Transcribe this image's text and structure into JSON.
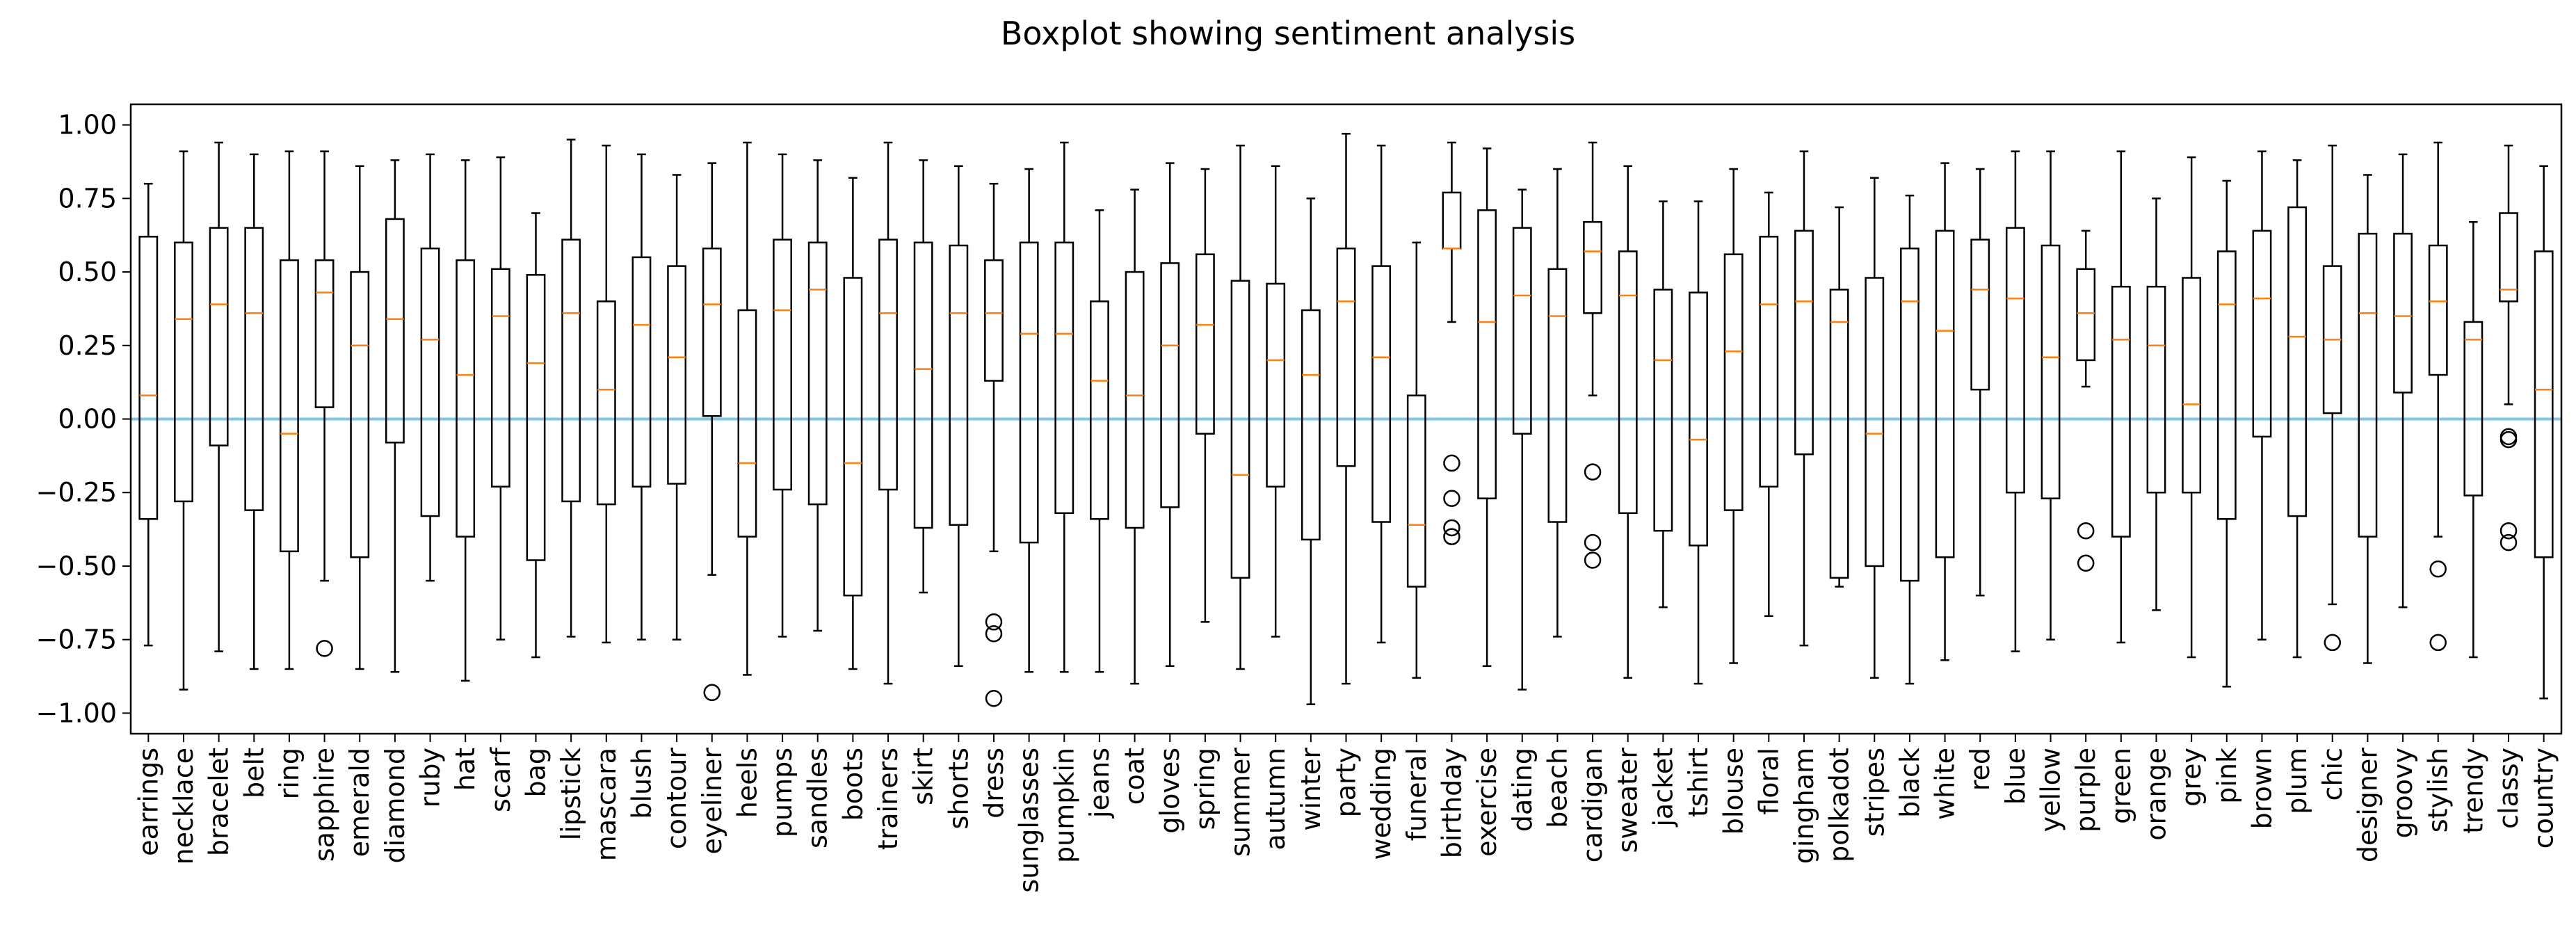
{
  "chart_data": {
    "type": "boxplot",
    "title": "Boxplot showing sentiment analysis",
    "xlabel": "",
    "ylabel": "",
    "ylim": [
      -1.07,
      1.07
    ],
    "yticks": [
      -1.0,
      -0.75,
      -0.5,
      -0.25,
      0.0,
      0.25,
      0.5,
      0.75,
      1.0
    ],
    "ytick_labels": [
      "−1.00",
      "−0.75",
      "−0.50",
      "−0.25",
      "0.00",
      "0.25",
      "0.50",
      "0.75",
      "1.00"
    ],
    "reference_line": {
      "y": 0.0,
      "color": "#7ec8e3"
    },
    "colors": {
      "box": "#000000",
      "median": "#ff7f0e",
      "flier": "#000000"
    },
    "grid": false,
    "categories": [
      "earrings",
      "necklace",
      "bracelet",
      "belt",
      "ring",
      "sapphire",
      "emerald",
      "diamond",
      "ruby",
      "hat",
      "scarf",
      "bag",
      "lipstick",
      "mascara",
      "blush",
      "contour",
      "eyeliner",
      "heels",
      "pumps",
      "sandles",
      "boots",
      "trainers",
      "skirt",
      "shorts",
      "dress",
      "sunglasses",
      "pumpkin",
      "jeans",
      "coat",
      "gloves",
      "spring",
      "summer",
      "autumn",
      "winter",
      "party",
      "wedding",
      "funeral",
      "birthday",
      "exercise",
      "dating",
      "beach",
      "cardigan",
      "sweater",
      "jacket",
      "tshirt",
      "blouse",
      "floral",
      "gingham",
      "polkadot",
      "stripes",
      "black",
      "white",
      "red",
      "blue",
      "yellow",
      "purple",
      "green",
      "orange",
      "grey",
      "pink",
      "brown",
      "plum",
      "chic",
      "designer",
      "groovy",
      "stylish",
      "trendy",
      "classy",
      "country"
    ],
    "boxes": [
      {
        "whislo": -0.77,
        "q1": -0.34,
        "med": 0.08,
        "q3": 0.62,
        "whishi": 0.8,
        "fliers": []
      },
      {
        "whislo": -0.92,
        "q1": -0.28,
        "med": 0.34,
        "q3": 0.6,
        "whishi": 0.91,
        "fliers": []
      },
      {
        "whislo": -0.79,
        "q1": -0.09,
        "med": 0.39,
        "q3": 0.65,
        "whishi": 0.94,
        "fliers": []
      },
      {
        "whislo": -0.85,
        "q1": -0.31,
        "med": 0.36,
        "q3": 0.65,
        "whishi": 0.9,
        "fliers": []
      },
      {
        "whislo": -0.85,
        "q1": -0.45,
        "med": -0.05,
        "q3": 0.54,
        "whishi": 0.91,
        "fliers": []
      },
      {
        "whislo": -0.55,
        "q1": 0.04,
        "med": 0.43,
        "q3": 0.54,
        "whishi": 0.91,
        "fliers": [
          -0.78
        ]
      },
      {
        "whislo": -0.85,
        "q1": -0.47,
        "med": 0.25,
        "q3": 0.5,
        "whishi": 0.86,
        "fliers": []
      },
      {
        "whislo": -0.86,
        "q1": -0.08,
        "med": 0.34,
        "q3": 0.68,
        "whishi": 0.88,
        "fliers": []
      },
      {
        "whislo": -0.55,
        "q1": -0.33,
        "med": 0.27,
        "q3": 0.58,
        "whishi": 0.9,
        "fliers": []
      },
      {
        "whislo": -0.89,
        "q1": -0.4,
        "med": 0.15,
        "q3": 0.54,
        "whishi": 0.88,
        "fliers": []
      },
      {
        "whislo": -0.75,
        "q1": -0.23,
        "med": 0.35,
        "q3": 0.51,
        "whishi": 0.89,
        "fliers": []
      },
      {
        "whislo": -0.81,
        "q1": -0.48,
        "med": 0.19,
        "q3": 0.49,
        "whishi": 0.7,
        "fliers": []
      },
      {
        "whislo": -0.74,
        "q1": -0.28,
        "med": 0.36,
        "q3": 0.61,
        "whishi": 0.95,
        "fliers": []
      },
      {
        "whislo": -0.76,
        "q1": -0.29,
        "med": 0.1,
        "q3": 0.4,
        "whishi": 0.93,
        "fliers": []
      },
      {
        "whislo": -0.75,
        "q1": -0.23,
        "med": 0.32,
        "q3": 0.55,
        "whishi": 0.9,
        "fliers": []
      },
      {
        "whislo": -0.75,
        "q1": -0.22,
        "med": 0.21,
        "q3": 0.52,
        "whishi": 0.83,
        "fliers": []
      },
      {
        "whislo": -0.53,
        "q1": 0.01,
        "med": 0.39,
        "q3": 0.58,
        "whishi": 0.87,
        "fliers": [
          -0.93
        ]
      },
      {
        "whislo": -0.87,
        "q1": -0.4,
        "med": -0.15,
        "q3": 0.37,
        "whishi": 0.94,
        "fliers": []
      },
      {
        "whislo": -0.74,
        "q1": -0.24,
        "med": 0.37,
        "q3": 0.61,
        "whishi": 0.9,
        "fliers": []
      },
      {
        "whislo": -0.72,
        "q1": -0.29,
        "med": 0.44,
        "q3": 0.6,
        "whishi": 0.88,
        "fliers": []
      },
      {
        "whislo": -0.85,
        "q1": -0.6,
        "med": -0.15,
        "q3": 0.48,
        "whishi": 0.82,
        "fliers": []
      },
      {
        "whislo": -0.9,
        "q1": -0.24,
        "med": 0.36,
        "q3": 0.61,
        "whishi": 0.94,
        "fliers": []
      },
      {
        "whislo": -0.59,
        "q1": -0.37,
        "med": 0.17,
        "q3": 0.6,
        "whishi": 0.88,
        "fliers": []
      },
      {
        "whislo": -0.84,
        "q1": -0.36,
        "med": 0.36,
        "q3": 0.59,
        "whishi": 0.86,
        "fliers": []
      },
      {
        "whislo": -0.45,
        "q1": 0.13,
        "med": 0.36,
        "q3": 0.54,
        "whishi": 0.8,
        "fliers": [
          -0.69,
          -0.73,
          -0.95
        ]
      },
      {
        "whislo": -0.86,
        "q1": -0.42,
        "med": 0.29,
        "q3": 0.6,
        "whishi": 0.85,
        "fliers": []
      },
      {
        "whislo": -0.86,
        "q1": -0.32,
        "med": 0.29,
        "q3": 0.6,
        "whishi": 0.94,
        "fliers": []
      },
      {
        "whislo": -0.86,
        "q1": -0.34,
        "med": 0.13,
        "q3": 0.4,
        "whishi": 0.71,
        "fliers": []
      },
      {
        "whislo": -0.9,
        "q1": -0.37,
        "med": 0.08,
        "q3": 0.5,
        "whishi": 0.78,
        "fliers": []
      },
      {
        "whislo": -0.84,
        "q1": -0.3,
        "med": 0.25,
        "q3": 0.53,
        "whishi": 0.87,
        "fliers": []
      },
      {
        "whislo": -0.69,
        "q1": -0.05,
        "med": 0.32,
        "q3": 0.56,
        "whishi": 0.85,
        "fliers": []
      },
      {
        "whislo": -0.85,
        "q1": -0.54,
        "med": -0.19,
        "q3": 0.47,
        "whishi": 0.93,
        "fliers": []
      },
      {
        "whislo": -0.74,
        "q1": -0.23,
        "med": 0.2,
        "q3": 0.46,
        "whishi": 0.86,
        "fliers": []
      },
      {
        "whislo": -0.97,
        "q1": -0.41,
        "med": 0.15,
        "q3": 0.37,
        "whishi": 0.75,
        "fliers": []
      },
      {
        "whislo": -0.9,
        "q1": -0.16,
        "med": 0.4,
        "q3": 0.58,
        "whishi": 0.97,
        "fliers": []
      },
      {
        "whislo": -0.76,
        "q1": -0.35,
        "med": 0.21,
        "q3": 0.52,
        "whishi": 0.93,
        "fliers": []
      },
      {
        "whislo": -0.88,
        "q1": -0.57,
        "med": -0.36,
        "q3": 0.08,
        "whishi": 0.6,
        "fliers": []
      },
      {
        "whislo": 0.33,
        "q1": 0.58,
        "med": 0.58,
        "q3": 0.77,
        "whishi": 0.94,
        "fliers": [
          -0.15,
          -0.27,
          -0.37,
          -0.4
        ]
      },
      {
        "whislo": -0.84,
        "q1": -0.27,
        "med": 0.33,
        "q3": 0.71,
        "whishi": 0.92,
        "fliers": []
      },
      {
        "whislo": -0.92,
        "q1": -0.05,
        "med": 0.42,
        "q3": 0.65,
        "whishi": 0.78,
        "fliers": []
      },
      {
        "whislo": -0.74,
        "q1": -0.35,
        "med": 0.35,
        "q3": 0.51,
        "whishi": 0.85,
        "fliers": []
      },
      {
        "whislo": 0.08,
        "q1": 0.36,
        "med": 0.57,
        "q3": 0.67,
        "whishi": 0.94,
        "fliers": [
          -0.18,
          -0.42,
          -0.48
        ]
      },
      {
        "whislo": -0.88,
        "q1": -0.32,
        "med": 0.42,
        "q3": 0.57,
        "whishi": 0.86,
        "fliers": []
      },
      {
        "whislo": -0.64,
        "q1": -0.38,
        "med": 0.2,
        "q3": 0.44,
        "whishi": 0.74,
        "fliers": []
      },
      {
        "whislo": -0.9,
        "q1": -0.43,
        "med": -0.07,
        "q3": 0.43,
        "whishi": 0.74,
        "fliers": []
      },
      {
        "whislo": -0.83,
        "q1": -0.31,
        "med": 0.23,
        "q3": 0.56,
        "whishi": 0.85,
        "fliers": []
      },
      {
        "whislo": -0.67,
        "q1": -0.23,
        "med": 0.39,
        "q3": 0.62,
        "whishi": 0.77,
        "fliers": []
      },
      {
        "whislo": -0.77,
        "q1": -0.12,
        "med": 0.4,
        "q3": 0.64,
        "whishi": 0.91,
        "fliers": []
      },
      {
        "whislo": -0.57,
        "q1": -0.54,
        "med": 0.33,
        "q3": 0.44,
        "whishi": 0.72,
        "fliers": []
      },
      {
        "whislo": -0.88,
        "q1": -0.5,
        "med": -0.05,
        "q3": 0.48,
        "whishi": 0.82,
        "fliers": []
      },
      {
        "whislo": -0.9,
        "q1": -0.55,
        "med": 0.4,
        "q3": 0.58,
        "whishi": 0.76,
        "fliers": []
      },
      {
        "whislo": -0.82,
        "q1": -0.47,
        "med": 0.3,
        "q3": 0.64,
        "whishi": 0.87,
        "fliers": []
      },
      {
        "whislo": -0.6,
        "q1": 0.1,
        "med": 0.44,
        "q3": 0.61,
        "whishi": 0.85,
        "fliers": []
      },
      {
        "whislo": -0.79,
        "q1": -0.25,
        "med": 0.41,
        "q3": 0.65,
        "whishi": 0.91,
        "fliers": []
      },
      {
        "whislo": -0.75,
        "q1": -0.27,
        "med": 0.21,
        "q3": 0.59,
        "whishi": 0.91,
        "fliers": []
      },
      {
        "whislo": 0.11,
        "q1": 0.2,
        "med": 0.36,
        "q3": 0.51,
        "whishi": 0.64,
        "fliers": [
          -0.38,
          -0.49
        ]
      },
      {
        "whislo": -0.76,
        "q1": -0.4,
        "med": 0.27,
        "q3": 0.45,
        "whishi": 0.91,
        "fliers": []
      },
      {
        "whislo": -0.65,
        "q1": -0.25,
        "med": 0.25,
        "q3": 0.45,
        "whishi": 0.75,
        "fliers": []
      },
      {
        "whislo": -0.81,
        "q1": -0.25,
        "med": 0.05,
        "q3": 0.48,
        "whishi": 0.89,
        "fliers": []
      },
      {
        "whislo": -0.91,
        "q1": -0.34,
        "med": 0.39,
        "q3": 0.57,
        "whishi": 0.81,
        "fliers": []
      },
      {
        "whislo": -0.75,
        "q1": -0.06,
        "med": 0.41,
        "q3": 0.64,
        "whishi": 0.91,
        "fliers": []
      },
      {
        "whislo": -0.81,
        "q1": -0.33,
        "med": 0.28,
        "q3": 0.72,
        "whishi": 0.88,
        "fliers": []
      },
      {
        "whislo": -0.63,
        "q1": 0.02,
        "med": 0.27,
        "q3": 0.52,
        "whishi": 0.93,
        "fliers": [
          -0.76
        ]
      },
      {
        "whislo": -0.83,
        "q1": -0.4,
        "med": 0.36,
        "q3": 0.63,
        "whishi": 0.83,
        "fliers": []
      },
      {
        "whislo": -0.64,
        "q1": 0.09,
        "med": 0.35,
        "q3": 0.63,
        "whishi": 0.9,
        "fliers": []
      },
      {
        "whislo": -0.4,
        "q1": 0.15,
        "med": 0.4,
        "q3": 0.59,
        "whishi": 0.94,
        "fliers": [
          -0.51,
          -0.76
        ]
      },
      {
        "whislo": -0.81,
        "q1": -0.26,
        "med": 0.27,
        "q3": 0.33,
        "whishi": 0.67,
        "fliers": []
      },
      {
        "whislo": 0.05,
        "q1": 0.4,
        "med": 0.44,
        "q3": 0.7,
        "whishi": 0.93,
        "fliers": [
          -0.06,
          -0.07,
          -0.38,
          -0.42
        ]
      },
      {
        "whislo": -0.95,
        "q1": -0.47,
        "med": 0.1,
        "q3": 0.57,
        "whishi": 0.86,
        "fliers": []
      }
    ]
  }
}
